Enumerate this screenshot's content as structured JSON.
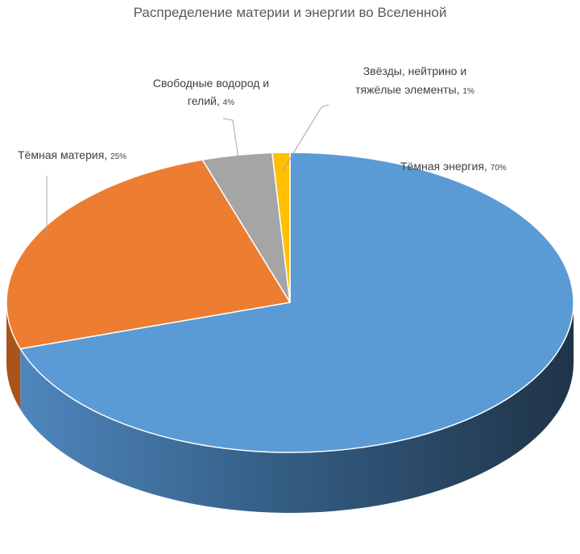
{
  "chart_data": {
    "type": "pie",
    "title": "Распределение материи и энергии во Вселенной",
    "slices": [
      {
        "label": "Тёмная энергия",
        "value": 70,
        "value_label": "70%",
        "color": "#5B9BD5",
        "side_color": "#2F5675"
      },
      {
        "label": "Тёмная материя",
        "value": 25,
        "value_label": "25%",
        "color": "#ED7D31",
        "side_color": "#A9541C"
      },
      {
        "label": "Свободные водород и гелий",
        "value": 4,
        "value_label": "4%",
        "color": "#A5A5A5",
        "side_color": "#7A7A7A"
      },
      {
        "label": "Звёзды, нейтрино и тяжёлые элементы",
        "value": 1,
        "value_label": "1%",
        "color": "#FFC000",
        "side_color": "#B88A00"
      }
    ],
    "style": "3d",
    "legend": "none",
    "data_labels": "outside-with-leader-lines"
  }
}
